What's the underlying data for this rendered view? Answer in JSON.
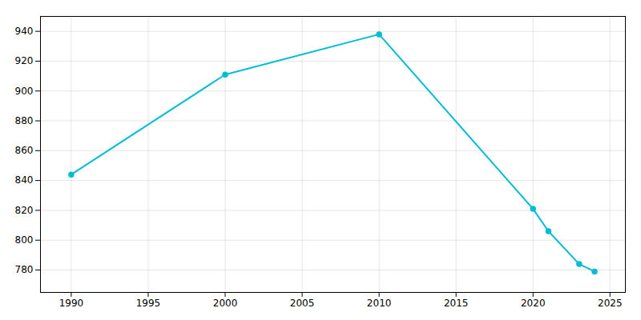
{
  "chart_data": {
    "type": "line",
    "x": [
      1990,
      2000,
      2010,
      2020,
      2021,
      2023,
      2024
    ],
    "values": [
      844,
      911,
      938,
      821,
      806,
      784,
      779
    ],
    "color": "#00bcd4",
    "marker": "circle",
    "xlim": [
      1988,
      2026
    ],
    "ylim": [
      765,
      950
    ],
    "xticks": [
      1990,
      1995,
      2000,
      2005,
      2010,
      2015,
      2020,
      2025
    ],
    "yticks": [
      780,
      800,
      820,
      840,
      860,
      880,
      900,
      920,
      940
    ],
    "grid": true
  }
}
